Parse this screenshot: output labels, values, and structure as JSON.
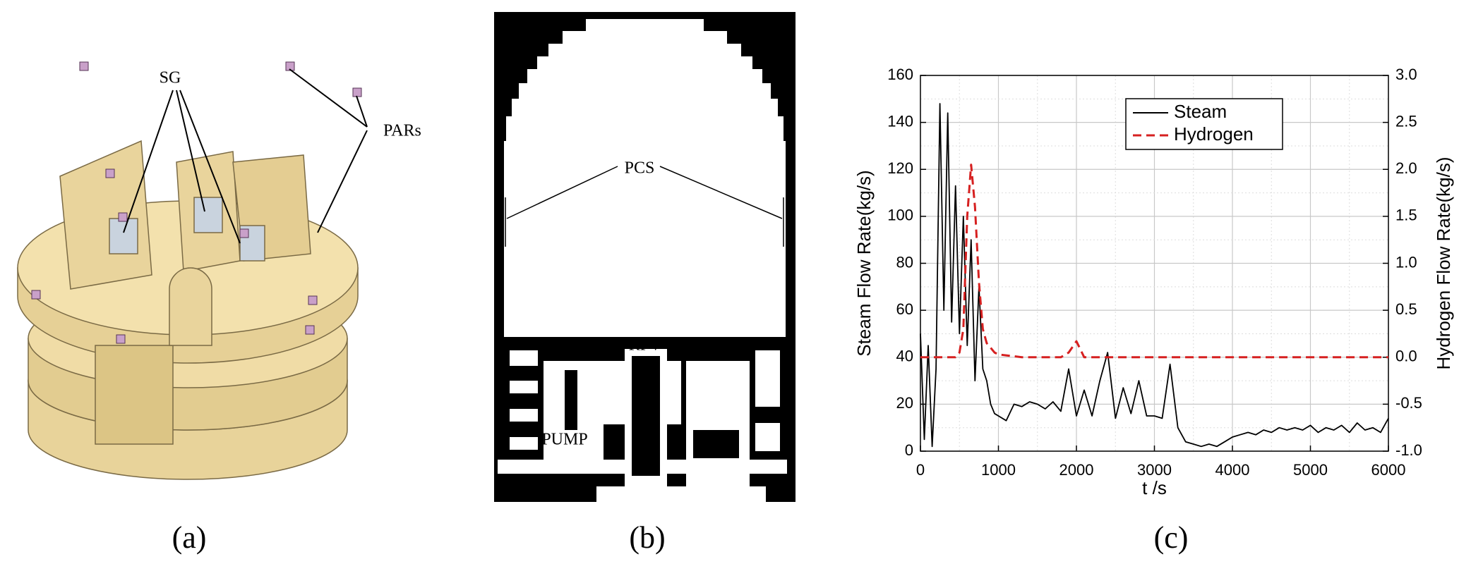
{
  "panel_a": {
    "caption": "(a)",
    "labels": [
      "SG",
      "PARs"
    ]
  },
  "panel_b": {
    "caption": "(b)",
    "labels": [
      "PCS",
      "RPV",
      "PUMP"
    ]
  },
  "panel_c": {
    "caption": "(c)"
  },
  "chart_data": {
    "type": "line",
    "xlabel": "t /s",
    "ylabel": "Steam Flow Rate(kg/s)",
    "y2label": "Hydrogen Flow Rate(kg/s)",
    "x": [
      0,
      50,
      100,
      150,
      200,
      250,
      300,
      350,
      400,
      450,
      500,
      550,
      600,
      650,
      700,
      750,
      800,
      850,
      900,
      950,
      1000,
      1100,
      1200,
      1300,
      1400,
      1500,
      1600,
      1700,
      1800,
      1900,
      2000,
      2100,
      2200,
      2300,
      2400,
      2500,
      2600,
      2700,
      2800,
      2900,
      3000,
      3100,
      3200,
      3300,
      3400,
      3500,
      3600,
      3700,
      3800,
      3900,
      4000,
      4100,
      4200,
      4300,
      4400,
      4500,
      4600,
      4700,
      4800,
      4900,
      5000,
      5100,
      5200,
      5300,
      5400,
      5500,
      5600,
      5700,
      5800,
      5900,
      6000
    ],
    "series": [
      {
        "name": "Steam",
        "color": "#000000",
        "dash": false,
        "values": [
          50,
          5,
          45,
          2,
          35,
          148,
          60,
          144,
          55,
          113,
          50,
          100,
          45,
          90,
          30,
          70,
          35,
          30,
          20,
          16,
          15,
          13,
          20,
          19,
          21,
          20,
          18,
          21,
          17,
          35,
          15,
          26,
          15,
          30,
          42,
          14,
          27,
          16,
          30,
          15,
          15,
          14,
          37,
          10,
          4,
          3,
          2,
          3,
          2,
          4,
          6,
          7,
          8,
          7,
          9,
          8,
          10,
          9,
          10,
          9,
          11,
          8,
          10,
          9,
          11,
          8,
          12,
          9,
          10,
          8,
          14
        ]
      },
      {
        "name": "Hydrogen",
        "color": "#d62020",
        "dash": true,
        "axis": "y2",
        "values": [
          0,
          0,
          0,
          0,
          0,
          0,
          0,
          0,
          0,
          0,
          0.05,
          0.3,
          1.5,
          2.05,
          1.6,
          0.8,
          0.3,
          0.15,
          0.1,
          0.05,
          0.03,
          0.02,
          0.01,
          0,
          0,
          0,
          0,
          0,
          0,
          0.05,
          0.17,
          0,
          0,
          0,
          0,
          0,
          0,
          0,
          0,
          0,
          0,
          0,
          0,
          0,
          0,
          0,
          0,
          0,
          0,
          0,
          0,
          0,
          0,
          0,
          0,
          0,
          0,
          0,
          0,
          0,
          0,
          0,
          0,
          0,
          0,
          0,
          0,
          0,
          0,
          0,
          0
        ]
      }
    ],
    "xlim": [
      0,
      6000
    ],
    "xticks": [
      0,
      1000,
      2000,
      3000,
      4000,
      5000,
      6000
    ],
    "ylim": [
      0,
      160
    ],
    "yticks": [
      0,
      20,
      40,
      60,
      80,
      100,
      120,
      140,
      160
    ],
    "y2lim": [
      -1,
      3
    ],
    "y2ticks": [
      {
        "value": -1,
        "label": "-1.0"
      },
      {
        "value": -0.5,
        "label": "-0.5"
      },
      {
        "value": 0,
        "label": "0.0"
      },
      {
        "value": 0.5,
        "label": "0.5"
      },
      {
        "value": 1,
        "label": "1.0"
      },
      {
        "value": 1.5,
        "label": "1.5"
      },
      {
        "value": 2,
        "label": "2.0"
      },
      {
        "value": 2.5,
        "label": "2.5"
      },
      {
        "value": 3,
        "label": "3.0"
      }
    ],
    "grid": true,
    "legend": "top"
  }
}
